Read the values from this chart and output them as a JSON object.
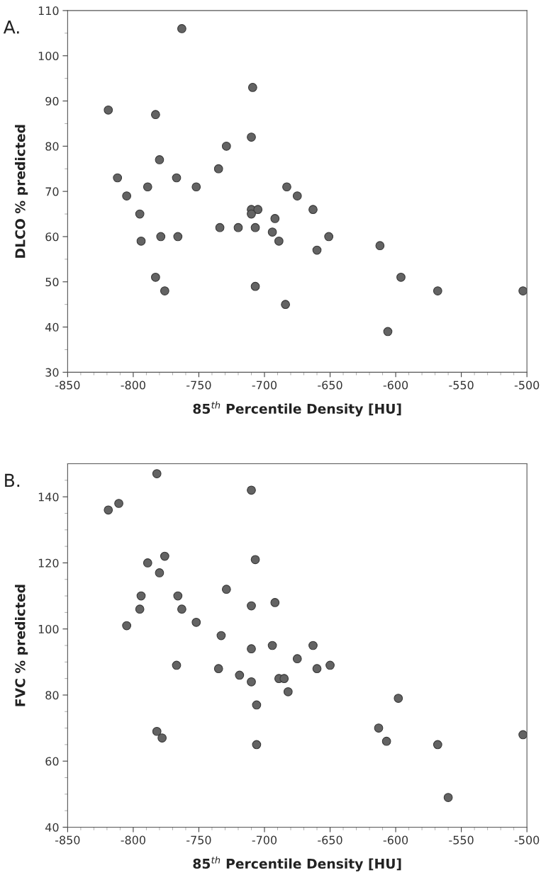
{
  "chart_data": [
    {
      "type": "scatter",
      "xlabel": "85$^{th}$ Percentile Density [HU]",
      "ylabel": "DLCO % predicted",
      "annotations": [
        "A."
      ],
      "x": [
        -763,
        -709,
        -819,
        -783,
        -710,
        -729,
        -780,
        -735,
        -812,
        -767,
        -789,
        -752,
        -683,
        -805,
        -675,
        -710,
        -705,
        -663,
        -795,
        -710,
        -734,
        -720,
        -707,
        -692,
        -694,
        -779,
        -766,
        -651,
        -794,
        -689,
        -660,
        -612,
        -783,
        -596,
        -776,
        -568,
        -503,
        -707,
        -684,
        -606
      ],
      "series": [
        {
          "color": "#636363",
          "values": [
            106,
            93,
            88,
            87,
            82,
            80,
            77,
            75,
            73,
            73,
            71,
            71,
            71,
            69,
            69,
            66,
            66,
            66,
            65,
            65,
            62,
            62,
            62,
            64,
            61,
            60,
            60,
            60,
            59,
            59,
            57,
            58,
            51,
            51,
            48,
            48,
            48,
            49,
            45,
            39
          ]
        }
      ],
      "marker": "circle",
      "grid": false,
      "xlim": [
        -850,
        -500
      ],
      "ylim": [
        30,
        110
      ],
      "xticks": [
        -850,
        -800,
        -750,
        -700,
        -650,
        -600,
        -550,
        -500,
        {
          "value": -840,
          "label": null
        },
        {
          "value": -830,
          "label": null
        },
        {
          "value": -820,
          "label": null
        },
        {
          "value": -810,
          "label": null
        },
        {
          "value": -790,
          "label": null
        },
        {
          "value": -780,
          "label": null
        },
        {
          "value": -770,
          "label": null
        },
        {
          "value": -760,
          "label": null
        },
        {
          "value": -740,
          "label": null
        },
        {
          "value": -730,
          "label": null
        },
        {
          "value": -720,
          "label": null
        },
        {
          "value": -710,
          "label": null
        },
        {
          "value": -690,
          "label": null
        },
        {
          "value": -680,
          "label": null
        },
        {
          "value": -670,
          "label": null
        },
        {
          "value": -660,
          "label": null
        },
        {
          "value": -640,
          "label": null
        },
        {
          "value": -630,
          "label": null
        },
        {
          "value": -620,
          "label": null
        },
        {
          "value": -610,
          "label": null
        },
        {
          "value": -590,
          "label": null
        },
        {
          "value": -580,
          "label": null
        },
        {
          "value": -570,
          "label": null
        },
        {
          "value": -560,
          "label": null
        },
        {
          "value": -540,
          "label": null
        },
        {
          "value": -530,
          "label": null
        },
        {
          "value": -520,
          "label": null
        },
        {
          "value": -510,
          "label": null
        }
      ],
      "yticks": [
        30,
        40,
        50,
        60,
        70,
        80,
        90,
        100,
        110,
        {
          "value": 35,
          "label": null
        },
        {
          "value": 45,
          "label": null
        },
        {
          "value": 55,
          "label": null
        },
        {
          "value": 65,
          "label": null
        },
        {
          "value": 75,
          "label": null
        },
        {
          "value": 85,
          "label": null
        },
        {
          "value": 95,
          "label": null
        },
        {
          "value": 105,
          "label": null
        }
      ]
    },
    {
      "type": "scatter",
      "xlabel": "85$^{th}$ Percentile Density [HU]",
      "ylabel": "FVC % predicted",
      "annotations": [
        "B."
      ],
      "x": [
        -782,
        -710,
        -819,
        -811,
        -776,
        -707,
        -789,
        -780,
        -729,
        -794,
        -766,
        -692,
        -710,
        -795,
        -763,
        -752,
        -805,
        -733,
        -694,
        -663,
        -710,
        -675,
        -767,
        -650,
        -735,
        -660,
        -719,
        -689,
        -685,
        -710,
        -682,
        -598,
        -706,
        -613,
        -782,
        -778,
        -607,
        -706,
        -568,
        -503,
        -560
      ],
      "series": [
        {
          "color": "#636363",
          "values": [
            147,
            142,
            136,
            138,
            122,
            121,
            120,
            117,
            112,
            110,
            110,
            108,
            107,
            106,
            106,
            102,
            101,
            98,
            95,
            95,
            94,
            91,
            89,
            89,
            88,
            88,
            86,
            85,
            85,
            84,
            81,
            79,
            77,
            70,
            69,
            67,
            66,
            65,
            65,
            68,
            49
          ]
        }
      ],
      "marker": "circle",
      "grid": false,
      "xlim": [
        -850,
        -500
      ],
      "ylim": [
        40,
        150
      ],
      "xticks": [
        -850,
        -800,
        -750,
        -700,
        -650,
        -600,
        -550,
        -500,
        {
          "value": -840,
          "label": null
        },
        {
          "value": -830,
          "label": null
        },
        {
          "value": -820,
          "label": null
        },
        {
          "value": -810,
          "label": null
        },
        {
          "value": -790,
          "label": null
        },
        {
          "value": -780,
          "label": null
        },
        {
          "value": -770,
          "label": null
        },
        {
          "value": -760,
          "label": null
        },
        {
          "value": -740,
          "label": null
        },
        {
          "value": -730,
          "label": null
        },
        {
          "value": -720,
          "label": null
        },
        {
          "value": -710,
          "label": null
        },
        {
          "value": -690,
          "label": null
        },
        {
          "value": -680,
          "label": null
        },
        {
          "value": -670,
          "label": null
        },
        {
          "value": -660,
          "label": null
        },
        {
          "value": -640,
          "label": null
        },
        {
          "value": -630,
          "label": null
        },
        {
          "value": -620,
          "label": null
        },
        {
          "value": -610,
          "label": null
        },
        {
          "value": -590,
          "label": null
        },
        {
          "value": -580,
          "label": null
        },
        {
          "value": -570,
          "label": null
        },
        {
          "value": -560,
          "label": null
        },
        {
          "value": -540,
          "label": null
        },
        {
          "value": -530,
          "label": null
        },
        {
          "value": -520,
          "label": null
        },
        {
          "value": -510,
          "label": null
        }
      ],
      "yticks": [
        40,
        60,
        80,
        100,
        120,
        140,
        {
          "value": 45,
          "label": null
        },
        {
          "value": 50,
          "label": null
        },
        {
          "value": 55,
          "label": null
        },
        {
          "value": 65,
          "label": null
        },
        {
          "value": 70,
          "label": null
        },
        {
          "value": 75,
          "label": null
        },
        {
          "value": 85,
          "label": null
        },
        {
          "value": 90,
          "label": null
        },
        {
          "value": 95,
          "label": null
        },
        {
          "value": 105,
          "label": null
        },
        {
          "value": 110,
          "label": null
        },
        {
          "value": 115,
          "label": null
        },
        {
          "value": 125,
          "label": null
        },
        {
          "value": 130,
          "label": null
        },
        {
          "value": 135,
          "label": null
        },
        {
          "value": 145,
          "label": null
        }
      ]
    }
  ]
}
